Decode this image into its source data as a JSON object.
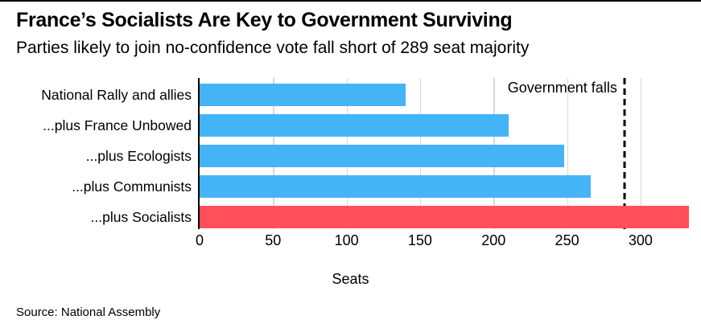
{
  "header": {
    "title": "France’s Socialists Are Key to Government Surviving",
    "subtitle": "Parties likely to join no-confidence vote fall short of 289 seat majority"
  },
  "chart_data": {
    "type": "bar",
    "orientation": "horizontal",
    "title": "France’s Socialists Are Key to Government Surviving",
    "subtitle": "Parties likely to join no-confidence vote fall short of 289 seat majority",
    "categories": [
      "National Rally and allies",
      "...plus France Unbowed",
      "...plus Ecologists",
      "...plus Communists",
      "...plus Socialists"
    ],
    "values": [
      140,
      210,
      248,
      266,
      333
    ],
    "bar_colors": [
      "#45b4f6",
      "#45b4f6",
      "#45b4f6",
      "#45b4f6",
      "#ff4f5a"
    ],
    "xlabel": "Seats",
    "x_ticks": [
      0,
      50,
      100,
      150,
      200,
      250,
      300
    ],
    "xlim": [
      0,
      334
    ],
    "grid": "vertical-behind-bars",
    "legend_position": "none",
    "reference_line": {
      "value": 289,
      "label": "Government falls",
      "style": "dashed",
      "color": "#000000"
    },
    "colors": {
      "majority_blue": "#45b4f6",
      "socialists_red": "#ff4f5a",
      "gridline": "#d8d8d8",
      "axis_line": "#000000"
    }
  },
  "footer": {
    "source": "Source: National Assembly"
  }
}
